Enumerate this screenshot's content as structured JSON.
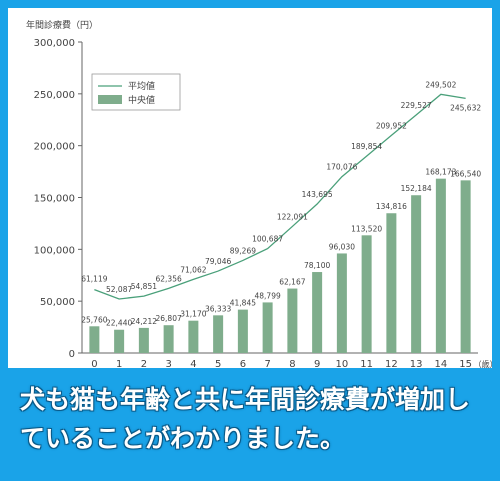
{
  "chart_data": {
    "type": "bar",
    "ylabel": "年間診療費（円）",
    "x": [
      0,
      1,
      2,
      3,
      4,
      5,
      6,
      7,
      8,
      9,
      10,
      11,
      12,
      13,
      14,
      15
    ],
    "x_unit": "（歳）",
    "ylim": [
      0,
      300000
    ],
    "yticks": [
      "0",
      "50,000",
      "100,000",
      "150,000",
      "200,000",
      "250,000",
      "300,000"
    ],
    "series": [
      {
        "name": "平均値",
        "kind": "line",
        "color": "#4aa07a",
        "values": [
          61119,
          52087,
          54851,
          62356,
          71062,
          79046,
          89269,
          100687,
          122091,
          143695,
          170076,
          189854,
          209952,
          229527,
          249502,
          245632
        ],
        "labels": [
          "61,119",
          "52,087",
          "54,851",
          "62,356",
          "71,062",
          "79,046",
          "89,269",
          "100,687",
          "122,091",
          "143,695",
          "170,076",
          "189,854",
          "209,952",
          "229,527",
          "249,502",
          "245,632"
        ]
      },
      {
        "name": "中央値",
        "kind": "bar",
        "color": "#7fad8c",
        "values": [
          25760,
          22440,
          24212,
          26807,
          31170,
          36333,
          41845,
          48799,
          62167,
          78100,
          96030,
          113520,
          134816,
          152184,
          168173,
          166540
        ],
        "labels": [
          "25,760",
          "22,440",
          "24,212",
          "26,807",
          "31,170",
          "36,333",
          "41,845",
          "48,799",
          "62,167",
          "78,100",
          "96,030",
          "113,520",
          "134,816",
          "152,184",
          "168,173",
          "166,540"
        ]
      }
    ],
    "legend_position": "top-left",
    "grid": false
  },
  "caption": "犬も猫も年齢と共に年間診療費が増加していることがわかりました。"
}
